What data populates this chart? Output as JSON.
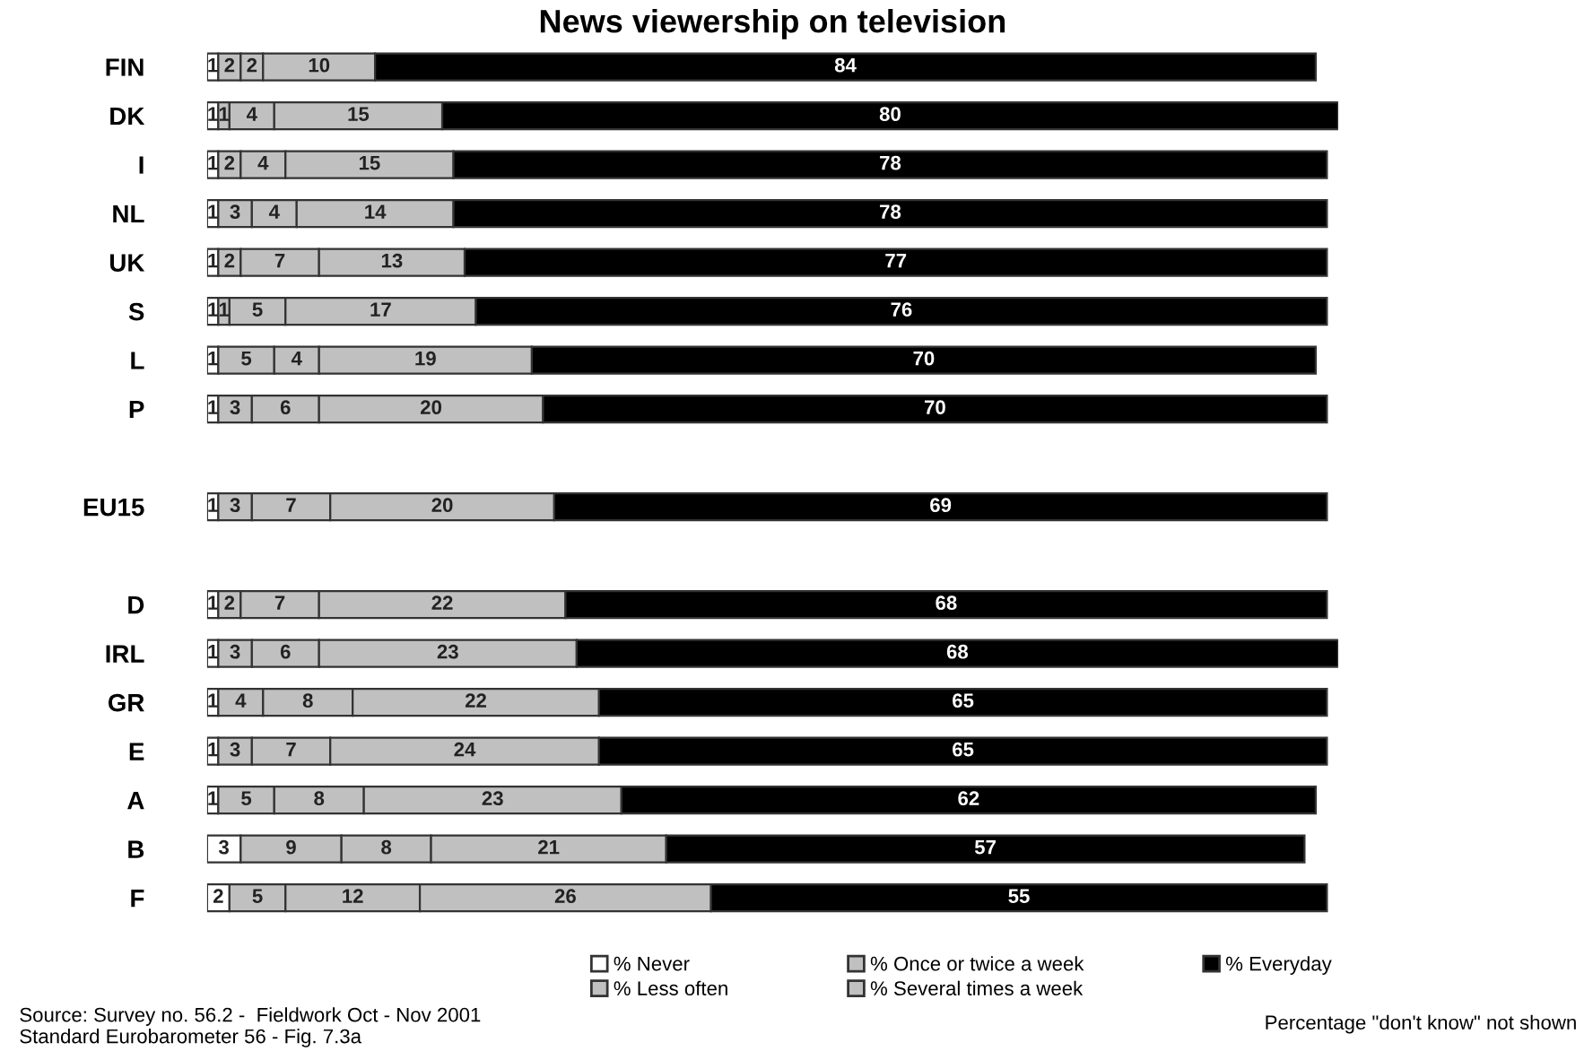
{
  "chart_data": {
    "type": "bar",
    "orientation": "horizontal",
    "stacked": true,
    "title": "News viewership on television",
    "categories": [
      "FIN",
      "DK",
      "I",
      "NL",
      "UK",
      "S",
      "L",
      "P",
      null,
      "EU15",
      null,
      "D",
      "IRL",
      "GR",
      "E",
      "A",
      "B",
      "F"
    ],
    "series": [
      {
        "name": "% Never",
        "color": "#ffffff",
        "values": [
          1,
          1,
          1,
          1,
          1,
          1,
          1,
          1,
          null,
          1,
          null,
          1,
          1,
          1,
          1,
          1,
          3,
          2
        ]
      },
      {
        "name": "% Less often",
        "color": "#c0c0c0",
        "values": [
          2,
          1,
          2,
          3,
          2,
          1,
          5,
          3,
          null,
          3,
          null,
          2,
          3,
          4,
          3,
          5,
          9,
          5
        ]
      },
      {
        "name": "% Once or twice a week",
        "color": "#c0c0c0",
        "values": [
          2,
          4,
          4,
          4,
          7,
          5,
          4,
          6,
          null,
          7,
          null,
          7,
          6,
          8,
          7,
          8,
          8,
          12
        ]
      },
      {
        "name": "% Several times a week",
        "color": "#c0c0c0",
        "values": [
          10,
          15,
          15,
          14,
          13,
          17,
          19,
          20,
          null,
          20,
          null,
          22,
          23,
          22,
          24,
          23,
          21,
          26
        ]
      },
      {
        "name": "% Everyday",
        "color": "#000000",
        "values": [
          84,
          80,
          78,
          78,
          77,
          76,
          70,
          70,
          null,
          69,
          null,
          68,
          68,
          65,
          65,
          62,
          57,
          55
        ]
      }
    ],
    "data_labels": true,
    "legend": "bottom",
    "grid": false,
    "annotations": [
      "Source: Survey no. 56.2 -  Fieldwork Oct - Nov 2001\nStandard Eurobarometer 56 - Fig. 7.3a",
      "Percentage \"don't know\" not shown"
    ]
  }
}
